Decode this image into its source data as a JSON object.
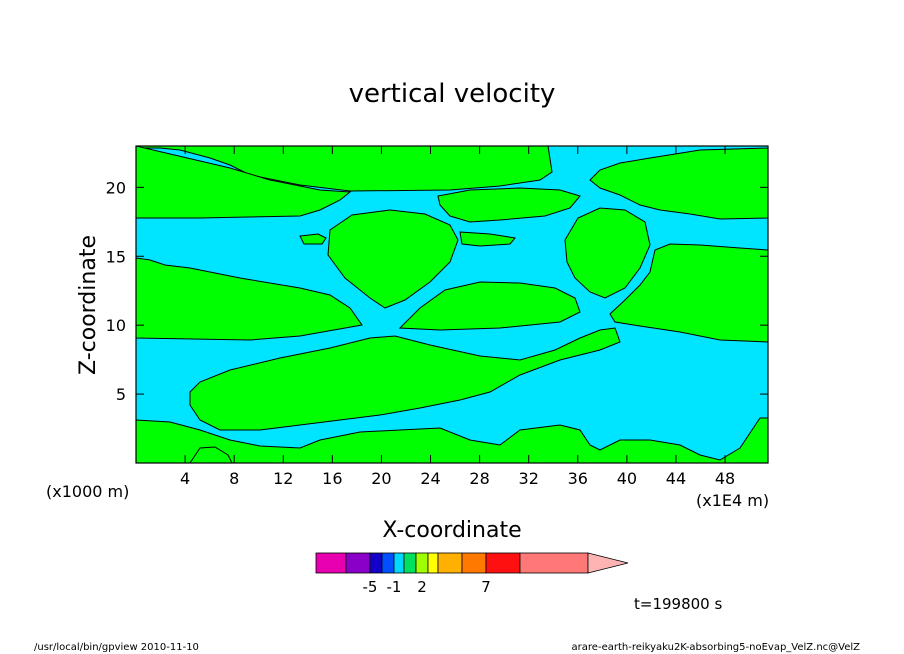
{
  "chart_data": {
    "type": "heatmap",
    "title": "vertical velocity",
    "xlabel": "X-coordinate",
    "ylabel": "Z-coordinate",
    "x_unit_label": "(x1E4 m)",
    "y_unit_label": "(x1000 m)",
    "xlim": [
      0,
      51.5
    ],
    "ylim": [
      0,
      23
    ],
    "x_ticks": [
      "4",
      "8",
      "12",
      "16",
      "20",
      "24",
      "28",
      "32",
      "36",
      "40",
      "44",
      "48"
    ],
    "y_ticks": [
      "5",
      "10",
      "15",
      "20"
    ],
    "regions": {
      "positive_color": "#00ff00",
      "negative_color": "#00e5ff",
      "note_positive": "green areas",
      "note_negative": "cyan areas"
    },
    "colorbar": {
      "colors": [
        "#e800b0",
        "#8a00c8",
        "#1400c8",
        "#0050ff",
        "#00d8ff",
        "#00e060",
        "#a0ff00",
        "#ffff00",
        "#ffb000",
        "#ff7800",
        "#ff1010",
        "#ff7878",
        "#ffb4b4"
      ],
      "tick_labels": [
        {
          "label": "-5",
          "seg": 2
        },
        {
          "label": "-1",
          "seg": 4
        },
        {
          "label": "2",
          "seg": 6.5
        },
        {
          "label": "7",
          "seg": 10
        }
      ]
    },
    "time_label": "t=199800 s",
    "footer_left": "/usr/local/bin/gpview  2010-11-10",
    "footer_right": "arare-earth-reikyaku2K-absorbing5-noEvap_VelZ.nc@VelZ"
  }
}
